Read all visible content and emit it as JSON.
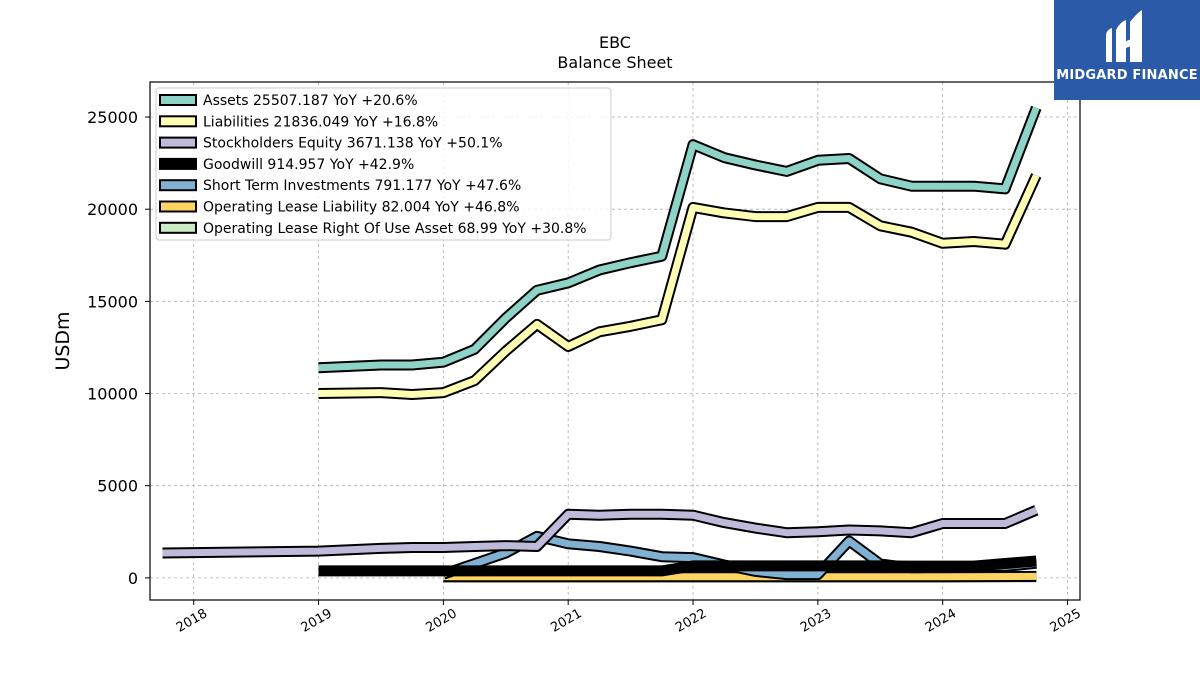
{
  "logo": {
    "text": "MIDGARD FINANCE",
    "background": "#2b5aa8",
    "icon": "midgard-m-logo-icon"
  },
  "chart_data": {
    "type": "line",
    "title": "EBC",
    "subtitle": "Balance  Sheet",
    "xlabel": "",
    "ylabel": "USDm",
    "xlim": [
      2017.65,
      2025.1
    ],
    "ylim": [
      -1200,
      26900
    ],
    "xticks": [
      2018,
      2019,
      2020,
      2021,
      2022,
      2023,
      2024,
      2025
    ],
    "xtick_labels": [
      "2018",
      "2019",
      "2020",
      "2021",
      "2022",
      "2023",
      "2024",
      "2025"
    ],
    "yticks": [
      0,
      5000,
      10000,
      15000,
      20000,
      25000
    ],
    "ytick_labels": [
      "0",
      "5000",
      "10000",
      "15000",
      "20000",
      "25000"
    ],
    "grid": true,
    "legend_position": "upper-left",
    "series": [
      {
        "name": "Assets",
        "legend": "Assets  25507.187 YoY +20.6%",
        "color": "#8dd3c7",
        "x": [
          2019.0,
          2019.5,
          2019.75,
          2020.0,
          2020.25,
          2020.5,
          2020.75,
          2021.0,
          2021.25,
          2021.5,
          2021.75,
          2022.0,
          2022.25,
          2022.5,
          2022.75,
          2023.0,
          2023.25,
          2023.5,
          2023.75,
          2024.0,
          2024.25,
          2024.5,
          2024.75
        ],
        "values": [
          11400,
          11550,
          11550,
          11700,
          12400,
          14100,
          15600,
          16000,
          16700,
          17100,
          17450,
          23500,
          22800,
          22400,
          22050,
          22650,
          22750,
          21650,
          21250,
          21250,
          21250,
          21100,
          25507
        ]
      },
      {
        "name": "Liabilities",
        "legend": "Liabilities  21836.049 YoY +16.8%",
        "color": "#ffffb3",
        "x": [
          2019.0,
          2019.5,
          2019.75,
          2020.0,
          2020.25,
          2020.5,
          2020.75,
          2021.0,
          2021.25,
          2021.5,
          2021.75,
          2022.0,
          2022.25,
          2022.5,
          2022.75,
          2023.0,
          2023.25,
          2023.5,
          2023.75,
          2024.0,
          2024.25,
          2024.5,
          2024.75
        ],
        "values": [
          10000,
          10050,
          9950,
          10050,
          10700,
          12300,
          13750,
          12550,
          13350,
          13650,
          14000,
          20100,
          19800,
          19600,
          19600,
          20100,
          20100,
          19100,
          18750,
          18150,
          18250,
          18100,
          21836
        ]
      },
      {
        "name": "Stockholders Equity",
        "legend": "Stockholders Equity  3671.138 YoY +50.1%",
        "color": "#bebada",
        "x": [
          2017.75,
          2019.0,
          2019.5,
          2019.75,
          2020.0,
          2020.25,
          2020.5,
          2020.75,
          2021.0,
          2021.25,
          2021.5,
          2021.75,
          2022.0,
          2022.25,
          2022.5,
          2022.75,
          2023.0,
          2023.25,
          2023.5,
          2023.75,
          2024.0,
          2024.25,
          2024.5,
          2024.75
        ],
        "values": [
          1350,
          1450,
          1600,
          1650,
          1650,
          1700,
          1750,
          1700,
          3450,
          3400,
          3450,
          3450,
          3400,
          3000,
          2700,
          2450,
          2500,
          2600,
          2550,
          2450,
          2950,
          2950,
          2950,
          3671
        ]
      },
      {
        "name": "Goodwill",
        "legend": "Goodwill  914.957 YoY +42.9%",
        "color": "#000000",
        "x": [
          2019.0,
          2019.5,
          2020.0,
          2020.5,
          2021.0,
          2021.5,
          2021.75,
          2022.0,
          2022.25,
          2022.5,
          2022.75,
          2023.0,
          2023.25,
          2023.5,
          2023.75,
          2024.0,
          2024.25,
          2024.5,
          2024.75
        ],
        "values": [
          380,
          380,
          380,
          380,
          380,
          380,
          380,
          650,
          650,
          650,
          650,
          650,
          650,
          650,
          640,
          640,
          640,
          780,
          915
        ]
      },
      {
        "name": "Short Term Investments",
        "legend": "Short Term Investments  791.177 YoY +47.6%",
        "color": "#80b1d3",
        "x": [
          2020.0,
          2020.5,
          2020.75,
          2021.0,
          2021.25,
          2021.5,
          2021.75,
          2022.0,
          2022.25,
          2022.5,
          2022.75,
          2023.0,
          2023.25,
          2023.5,
          2023.75,
          2024.0,
          2024.25,
          2024.5,
          2024.75
        ],
        "values": [
          200,
          1350,
          2250,
          1850,
          1700,
          1450,
          1150,
          1100,
          700,
          350,
          180,
          180,
          2000,
          750,
          550,
          580,
          620,
          620,
          791
        ]
      },
      {
        "name": "Operating Lease Liability",
        "legend": "Operating Lease Liability  82.004 YoY +46.8%",
        "color": "#fdd462",
        "x": [
          2020.0,
          2021.0,
          2022.0,
          2023.0,
          2024.0,
          2024.75
        ],
        "values": [
          60,
          60,
          60,
          60,
          60,
          82
        ]
      },
      {
        "name": "Operating Lease Right Of Use Asset",
        "legend": "Operating Lease Right Of Use Asset  68.99 YoY +30.8%",
        "color": "#ccebc5",
        "x": [
          2020.0,
          2021.0,
          2022.0,
          2023.0,
          2024.0,
          2024.75
        ],
        "values": [
          60,
          60,
          60,
          60,
          60,
          69
        ]
      }
    ]
  }
}
